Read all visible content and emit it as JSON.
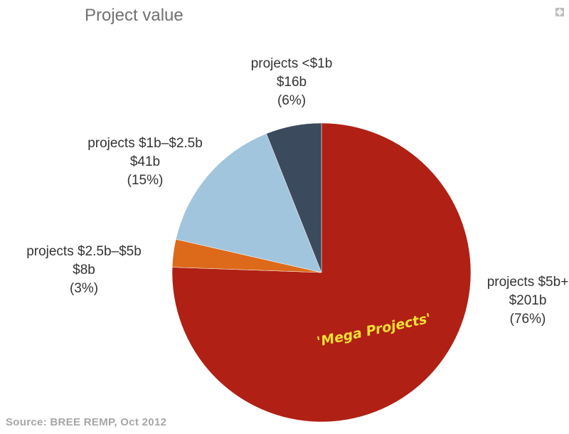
{
  "title": "Project value",
  "expand_icon": "expand-icon",
  "chart_data": {
    "type": "pie",
    "start_angle_deg": 0,
    "direction": "clockwise",
    "slices": [
      {
        "label": "projects $5b+",
        "value_text": "$201b",
        "percent_text": "(76%)",
        "value": 201,
        "percent": 76,
        "color": "#b02014"
      },
      {
        "label": "projects $2.5b–$5b",
        "value_text": "$8b",
        "percent_text": "(3%)",
        "value": 8,
        "percent": 3,
        "color": "#dd6a1a"
      },
      {
        "label": "projects $1b–$2.5b",
        "value_text": "$41b",
        "percent_text": "(15%)",
        "value": 41,
        "percent": 15,
        "color": "#a1c5dc"
      },
      {
        "label": "projects <$1b",
        "value_text": "$16b",
        "percent_text": "(6%)",
        "value": 16,
        "percent": 6,
        "color": "#3b4a5c"
      }
    ],
    "annotation": {
      "text": "'Mega Projects'",
      "color": "#f2e033"
    }
  },
  "source": "Source:  BREE REMP, Oct 2012"
}
